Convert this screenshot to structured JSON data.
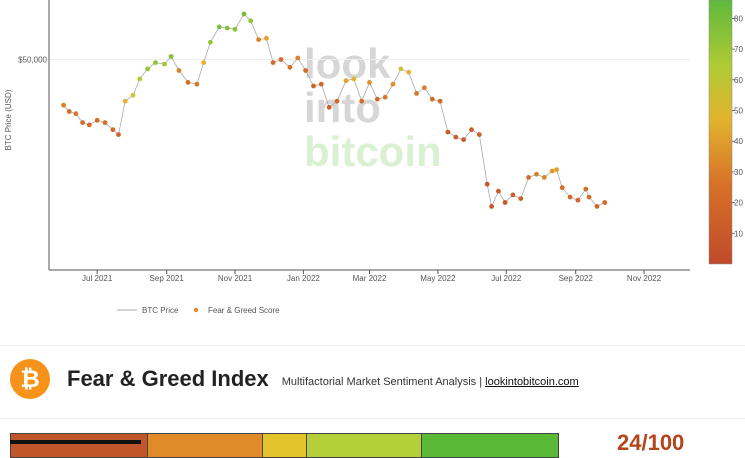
{
  "chart_data": {
    "type": "scatter",
    "y_axis": {
      "label": "BTC Price (USD)",
      "scale": "log",
      "tick_label": "$50,000",
      "tick_value": 50000
    },
    "x_axis": {
      "ticks": [
        "Jul 2021",
        "Sep 2021",
        "Nov 2021",
        "Jan 2022",
        "Mar 2022",
        "May 2022",
        "Jul 2022",
        "Sep 2022",
        "Nov 2022"
      ]
    },
    "colorbar": {
      "ticks": [
        "80",
        "70",
        "60",
        "50",
        "40",
        "30",
        "20",
        "10"
      ]
    },
    "legend": {
      "position": "bottom-left",
      "items": [
        "BTC Price",
        "Fear & Greed Score"
      ]
    },
    "watermark": [
      "look",
      "into",
      "bitcoin"
    ],
    "series": [
      {
        "name": "Fear & Greed Score",
        "points": [
          [
            "2021-06-01",
            37000,
            30
          ],
          [
            "2021-06-06",
            35500,
            25
          ],
          [
            "2021-06-12",
            35000,
            28
          ],
          [
            "2021-06-18",
            33000,
            22
          ],
          [
            "2021-06-24",
            32500,
            22
          ],
          [
            "2021-07-01",
            33500,
            24
          ],
          [
            "2021-07-08",
            33000,
            25
          ],
          [
            "2021-07-15",
            31500,
            22
          ],
          [
            "2021-07-20",
            30500,
            18
          ],
          [
            "2021-07-26",
            38000,
            45
          ],
          [
            "2021-08-02",
            39500,
            55
          ],
          [
            "2021-08-08",
            44000,
            62
          ],
          [
            "2021-08-15",
            47000,
            70
          ],
          [
            "2021-08-22",
            49000,
            72
          ],
          [
            "2021-08-30",
            48500,
            68
          ],
          [
            "2021-09-05",
            51000,
            75
          ],
          [
            "2021-09-12",
            46500,
            30
          ],
          [
            "2021-09-20",
            43000,
            25
          ],
          [
            "2021-09-28",
            42500,
            28
          ],
          [
            "2021-10-04",
            49000,
            45
          ],
          [
            "2021-10-10",
            56000,
            70
          ],
          [
            "2021-10-18",
            62000,
            78
          ],
          [
            "2021-10-25",
            61500,
            76
          ],
          [
            "2021-11-01",
            61000,
            75
          ],
          [
            "2021-11-09",
            67500,
            80
          ],
          [
            "2021-11-15",
            64500,
            72
          ],
          [
            "2021-11-22",
            57000,
            30
          ],
          [
            "2021-11-29",
            57500,
            40
          ],
          [
            "2021-12-05",
            49000,
            22
          ],
          [
            "2021-12-12",
            50000,
            25
          ],
          [
            "2021-12-20",
            47500,
            24
          ],
          [
            "2021-12-27",
            50500,
            30
          ],
          [
            "2022-01-03",
            46500,
            22
          ],
          [
            "2022-01-10",
            42000,
            18
          ],
          [
            "2022-01-17",
            42500,
            20
          ],
          [
            "2022-01-24",
            36500,
            15
          ],
          [
            "2022-01-31",
            38000,
            18
          ],
          [
            "2022-02-08",
            43500,
            40
          ],
          [
            "2022-02-15",
            44000,
            45
          ],
          [
            "2022-02-22",
            38000,
            25
          ],
          [
            "2022-03-01",
            43000,
            35
          ],
          [
            "2022-03-08",
            38500,
            22
          ],
          [
            "2022-03-15",
            39000,
            28
          ],
          [
            "2022-03-22",
            42500,
            35
          ],
          [
            "2022-03-29",
            47000,
            55
          ],
          [
            "2022-04-05",
            46000,
            45
          ],
          [
            "2022-04-12",
            40000,
            28
          ],
          [
            "2022-04-19",
            41500,
            30
          ],
          [
            "2022-04-26",
            38500,
            25
          ],
          [
            "2022-05-03",
            38000,
            22
          ],
          [
            "2022-05-10",
            31000,
            12
          ],
          [
            "2022-05-17",
            30000,
            14
          ],
          [
            "2022-05-24",
            29500,
            12
          ],
          [
            "2022-05-31",
            31500,
            14
          ],
          [
            "2022-06-07",
            30500,
            15
          ],
          [
            "2022-06-14",
            22000,
            10
          ],
          [
            "2022-06-18",
            19000,
            8
          ],
          [
            "2022-06-24",
            21000,
            12
          ],
          [
            "2022-06-30",
            19500,
            10
          ],
          [
            "2022-07-07",
            20500,
            14
          ],
          [
            "2022-07-14",
            20000,
            15
          ],
          [
            "2022-07-21",
            23000,
            25
          ],
          [
            "2022-07-28",
            23500,
            30
          ],
          [
            "2022-08-04",
            23000,
            32
          ],
          [
            "2022-08-11",
            24000,
            38
          ],
          [
            "2022-08-15",
            24200,
            40
          ],
          [
            "2022-08-20",
            21500,
            25
          ],
          [
            "2022-08-27",
            20200,
            22
          ],
          [
            "2022-09-03",
            19800,
            20
          ],
          [
            "2022-09-10",
            21300,
            24
          ],
          [
            "2022-09-13",
            20200,
            22
          ],
          [
            "2022-09-20",
            19000,
            20
          ],
          [
            "2022-09-27",
            19500,
            21
          ]
        ]
      }
    ]
  },
  "header": {
    "logo_icon": "bitcoin-icon",
    "title": "Fear & Greed Index",
    "subtitle": "Multifactorial Market Sentiment Analysis |",
    "link": "lookintobitcoin.com"
  },
  "gauge": {
    "segments": [
      {
        "color": "#c0562a",
        "fraction": 0.25
      },
      {
        "color": "#e08a2a",
        "fraction": 0.21
      },
      {
        "color": "#e3c42a",
        "fraction": 0.08
      },
      {
        "color": "#b4cf38",
        "fraction": 0.21
      },
      {
        "color": "#5ab936",
        "fraction": 0.25
      }
    ],
    "value": 24,
    "score_text": "24/100"
  },
  "colors": {
    "score": "#b5451b",
    "bitcoin": "#f7931a"
  }
}
